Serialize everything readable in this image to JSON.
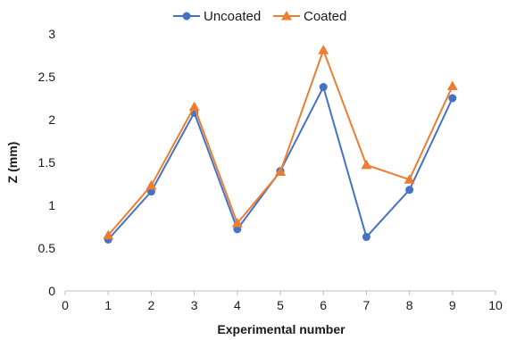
{
  "chart_data": {
    "type": "line",
    "title": "",
    "xlabel": "Experimental number",
    "ylabel": "Z (mm)",
    "xlim": [
      0,
      10
    ],
    "ylim": [
      0,
      3
    ],
    "x_ticks": [
      0,
      1,
      2,
      3,
      4,
      5,
      6,
      7,
      8,
      9,
      10
    ],
    "y_ticks": [
      0,
      0.5,
      1,
      1.5,
      2,
      2.5,
      3
    ],
    "y_tick_labels": [
      "0",
      "0.5",
      "1",
      "1.5",
      "2",
      "2.5",
      "3"
    ],
    "grid": false,
    "legend_position": "top",
    "series": [
      {
        "name": "Uncoated",
        "color": "#4472C4",
        "marker": "circle",
        "x": [
          1,
          2,
          3,
          4,
          5,
          6,
          7,
          8,
          9
        ],
        "y": [
          0.6,
          1.16,
          2.08,
          0.72,
          1.4,
          2.38,
          0.63,
          1.18,
          2.25
        ]
      },
      {
        "name": "Coated",
        "color": "#ED7D31",
        "marker": "triangle",
        "x": [
          1,
          2,
          3,
          4,
          5,
          6,
          7,
          8,
          9
        ],
        "y": [
          0.65,
          1.23,
          2.15,
          0.79,
          1.39,
          2.81,
          1.47,
          1.3,
          2.39
        ]
      }
    ]
  }
}
